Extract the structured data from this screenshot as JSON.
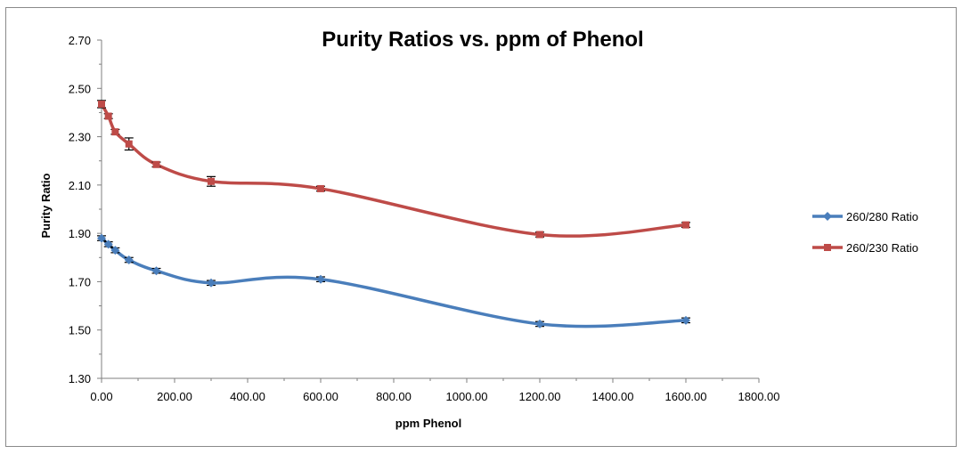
{
  "chart_data": {
    "type": "line",
    "title": "Purity Ratios vs. ppm of Phenol",
    "xlabel": "ppm Phenol",
    "ylabel": "Purity Ratio",
    "xlim": [
      0,
      1800
    ],
    "ylim": [
      1.3,
      2.7
    ],
    "x_ticks": [
      0,
      200,
      400,
      600,
      800,
      1000,
      1200,
      1400,
      1600,
      1800
    ],
    "x_tick_labels": [
      "0.00",
      "200.00",
      "400.00",
      "600.00",
      "800.00",
      "1000.00",
      "1200.00",
      "1400.00",
      "1600.00",
      "1800.00"
    ],
    "y_ticks": [
      1.3,
      1.5,
      1.7,
      1.9,
      2.1,
      2.3,
      2.5,
      2.7
    ],
    "y_tick_labels": [
      "1.30",
      "1.50",
      "1.70",
      "1.90",
      "2.10",
      "2.30",
      "2.50",
      "2.70"
    ],
    "grid": false,
    "legend_position": "right",
    "x": [
      0,
      18.75,
      37.5,
      75,
      150,
      300,
      600,
      1200,
      1600
    ],
    "series": [
      {
        "name": "260/280 Ratio",
        "color": "#4a7ebb",
        "marker": "diamond",
        "values": [
          1.88,
          1.855,
          1.83,
          1.79,
          1.745,
          1.695,
          1.71,
          1.525,
          1.54
        ],
        "errors": [
          0.01,
          0.01,
          0.01,
          0.01,
          0.01,
          0.01,
          0.01,
          0.01,
          0.01
        ]
      },
      {
        "name": "260/230 Ratio",
        "color": "#be4b48",
        "marker": "square",
        "values": [
          2.435,
          2.385,
          2.32,
          2.27,
          2.185,
          2.115,
          2.085,
          1.895,
          1.935
        ],
        "errors": [
          0.015,
          0.01,
          0.01,
          0.025,
          0.01,
          0.02,
          0.01,
          0.01,
          0.01
        ]
      }
    ]
  }
}
